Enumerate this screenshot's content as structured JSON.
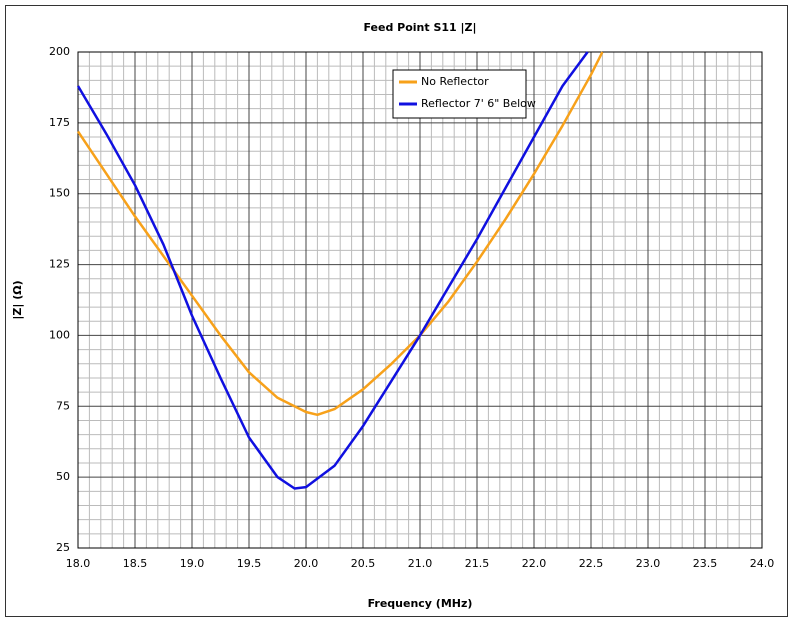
{
  "chart_data": {
    "type": "line",
    "title": "Feed Point S11 |Z|",
    "x_label": "Frequency (MHz)",
    "y_label": "|Z| (Ω)",
    "xlim": [
      18,
      24
    ],
    "ylim": [
      25,
      200
    ],
    "xticks": [
      {
        "value": 18,
        "label": "18.0"
      },
      {
        "value": 18.5,
        "label": "18.5"
      },
      {
        "value": 19,
        "label": "19.0"
      },
      {
        "value": 19.5,
        "label": "19.5"
      },
      {
        "value": 20,
        "label": "20.0"
      },
      {
        "value": 20.5,
        "label": "20.5"
      },
      {
        "value": 21,
        "label": "21.0"
      },
      {
        "value": 21.5,
        "label": "21.5"
      },
      {
        "value": 22,
        "label": "22.0"
      },
      {
        "value": 22.5,
        "label": "22.5"
      },
      {
        "value": 23,
        "label": "23.0"
      },
      {
        "value": 23.5,
        "label": "23.5"
      },
      {
        "value": 24,
        "label": "24.0"
      }
    ],
    "yticks": [
      25,
      50,
      75,
      100,
      125,
      150,
      175,
      200
    ],
    "grid": true,
    "minor_divisions": 5,
    "legend": "upper center",
    "series": [
      {
        "name": "No Reflector",
        "color": "#f7a11a",
        "x": [
          18.0,
          18.25,
          18.5,
          18.75,
          19.0,
          19.25,
          19.5,
          19.75,
          20.0,
          20.1,
          20.25,
          20.5,
          20.75,
          21.0,
          21.25,
          21.5,
          21.75,
          22.0,
          22.25,
          22.5,
          22.6
        ],
        "values": [
          172,
          157,
          142,
          128,
          114,
          100,
          87,
          78,
          73,
          72,
          74,
          81,
          90,
          100,
          112,
          126,
          141,
          157,
          174,
          192,
          200
        ]
      },
      {
        "name": "Reflector 7' 6\" Below",
        "color": "#1010e0",
        "x": [
          18.0,
          18.25,
          18.5,
          18.75,
          19.0,
          19.25,
          19.5,
          19.75,
          19.9,
          20.0,
          20.25,
          20.5,
          20.75,
          21.0,
          21.25,
          21.5,
          21.75,
          22.0,
          22.25,
          22.47
        ],
        "values": [
          188,
          171,
          153,
          132,
          107,
          85,
          64,
          50,
          46,
          46.5,
          54,
          68,
          84,
          100,
          117,
          134,
          152,
          170,
          188,
          200
        ]
      }
    ]
  }
}
